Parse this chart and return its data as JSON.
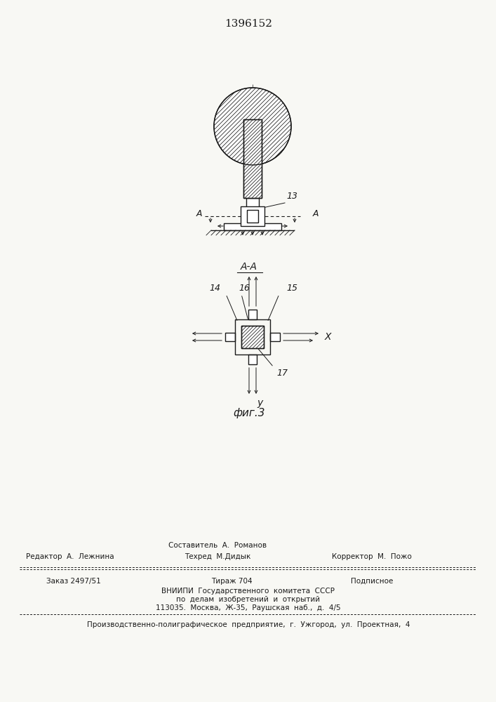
{
  "title_text": "1396152",
  "bg_color": "#f8f8f4",
  "line_color": "#1a1a1a",
  "fig_caption": "фиг.3",
  "label_AA": "A-A",
  "label_A_left": "A",
  "label_A_right": "A",
  "label_13": "13",
  "label_14": "14",
  "label_15": "15",
  "label_16": "16",
  "label_17": "17",
  "label_X": "X",
  "label_Y": "y",
  "footer_col1_line1": "Редактор  А.  Лежнина",
  "footer_col2_line0": "Составитель  А.  Романов",
  "footer_col2_line1": "Техред  М.Дидык",
  "footer_col3_line1": "Корректор  М.  Пожо",
  "footer_line3": "Заказ 2497/51",
  "footer_line3b": "Тираж 704",
  "footer_line3c": "Подписное",
  "footer_line4": "ВНИИПИ  Государственного  комитета  СССР",
  "footer_line5": "по  делам  изобретений  и  открытий",
  "footer_line6": "113035.  Москва,  Ж-35,  Раушская  наб.,  д.  4/5",
  "footer_line7": "Производственно-полиграфическое  предприятие,  г.  Ужгород,  ул.  Проектная,  4"
}
